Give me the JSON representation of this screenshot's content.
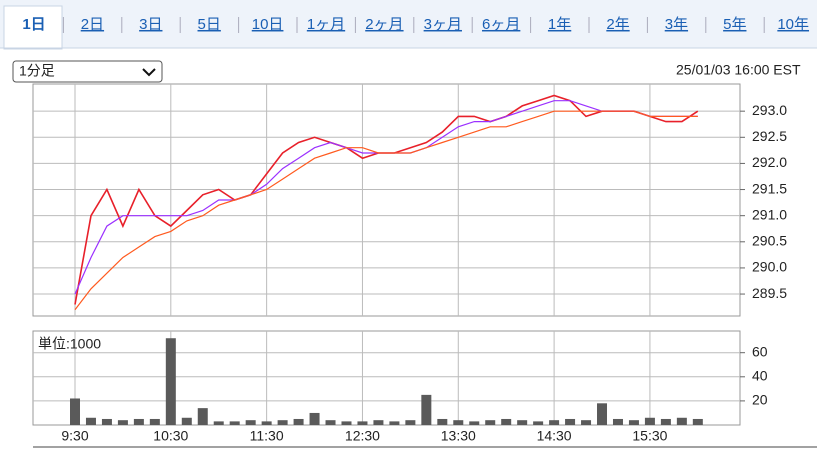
{
  "tabs": [
    "1日",
    "2日",
    "3日",
    "5日",
    "10日",
    "1ヶ月",
    "2ヶ月",
    "3ヶ月",
    "6ヶ月",
    "1年",
    "2年",
    "3年",
    "5年",
    "10年"
  ],
  "select": "1分足",
  "timestamp": "25/01/03 16:00 EST",
  "chart_data": [
    {
      "type": "line",
      "categories": [
        "9:30",
        null,
        null,
        null,
        null,
        null,
        "10:30",
        null,
        null,
        null,
        null,
        null,
        "11:30",
        null,
        null,
        null,
        null,
        null,
        "12:30",
        null,
        null,
        null,
        null,
        null,
        "13:30",
        null,
        null,
        null,
        null,
        null,
        "14:30",
        null,
        null,
        null,
        null,
        null,
        "15:30",
        null,
        null,
        null
      ],
      "series": [
        {
          "color": "#e8202a",
          "values": [
            289.3,
            291.0,
            291.5,
            290.8,
            291.5,
            291.0,
            290.8,
            291.1,
            291.4,
            291.5,
            291.3,
            291.4,
            291.8,
            292.2,
            292.4,
            292.5,
            292.4,
            292.3,
            292.1,
            292.2,
            292.2,
            292.3,
            292.4,
            292.6,
            292.9,
            292.9,
            292.8,
            292.9,
            293.1,
            293.2,
            293.3,
            293.2,
            292.9,
            293.0,
            293.0,
            293.0,
            292.9,
            292.8,
            292.8,
            293.0
          ]
        },
        {
          "color": "#9b30ff",
          "values": [
            289.5,
            290.2,
            290.8,
            291.0,
            291.0,
            291.0,
            291.0,
            291.0,
            291.1,
            291.3,
            291.3,
            291.4,
            291.6,
            291.9,
            292.1,
            292.3,
            292.4,
            292.3,
            292.2,
            292.2,
            292.2,
            292.2,
            292.3,
            292.5,
            292.7,
            292.8,
            292.8,
            292.9,
            293.0,
            293.1,
            293.2,
            293.2,
            293.1,
            293.0,
            293.0,
            293.0,
            292.9,
            292.9,
            292.9,
            292.9
          ]
        },
        {
          "color": "#ff5a1f",
          "values": [
            289.2,
            289.6,
            289.9,
            290.2,
            290.4,
            290.6,
            290.7,
            290.9,
            291.0,
            291.2,
            291.3,
            291.4,
            291.5,
            291.7,
            291.9,
            292.1,
            292.2,
            292.3,
            292.3,
            292.2,
            292.2,
            292.2,
            292.3,
            292.4,
            292.5,
            292.6,
            292.7,
            292.7,
            292.8,
            292.9,
            293.0,
            293.0,
            293.0,
            293.0,
            293.0,
            293.0,
            292.9,
            292.9,
            292.9,
            292.9
          ]
        }
      ],
      "ylim": [
        289.08,
        293.52
      ],
      "yticks": [
        {
          "value": 289.5,
          "label": "289.5"
        },
        {
          "value": 290,
          "label": "290.0"
        },
        {
          "value": 290.5,
          "label": "290.5"
        },
        {
          "value": 291,
          "label": "291.0"
        },
        {
          "value": 291.5,
          "label": "291.5"
        },
        {
          "value": 292,
          "label": "292.0"
        },
        {
          "value": 292.5,
          "label": "292.5"
        },
        {
          "value": 293,
          "label": "293.0"
        }
      ],
      "grid": true
    },
    {
      "type": "bar",
      "unit_label": "単位:1000",
      "categories": [
        "9:30",
        null,
        null,
        null,
        null,
        null,
        "10:30",
        null,
        null,
        null,
        null,
        null,
        "11:30",
        null,
        null,
        null,
        null,
        null,
        "12:30",
        null,
        null,
        null,
        null,
        null,
        "13:30",
        null,
        null,
        null,
        null,
        null,
        "14:30",
        null,
        null,
        null,
        null,
        null,
        "15:30",
        null,
        null,
        null
      ],
      "values": [
        22,
        6,
        5,
        4,
        5,
        5,
        72,
        6,
        14,
        3,
        3,
        4,
        3,
        4,
        5,
        10,
        4,
        3,
        3,
        4,
        3,
        4,
        25,
        5,
        4,
        3,
        4,
        5,
        4,
        3,
        4,
        5,
        4,
        18,
        5,
        4,
        6,
        5,
        6,
        5
      ],
      "color": "#5a5a5a",
      "ylim": [
        0,
        78
      ],
      "yticks": [
        20,
        40,
        60
      ],
      "grid": true
    }
  ]
}
